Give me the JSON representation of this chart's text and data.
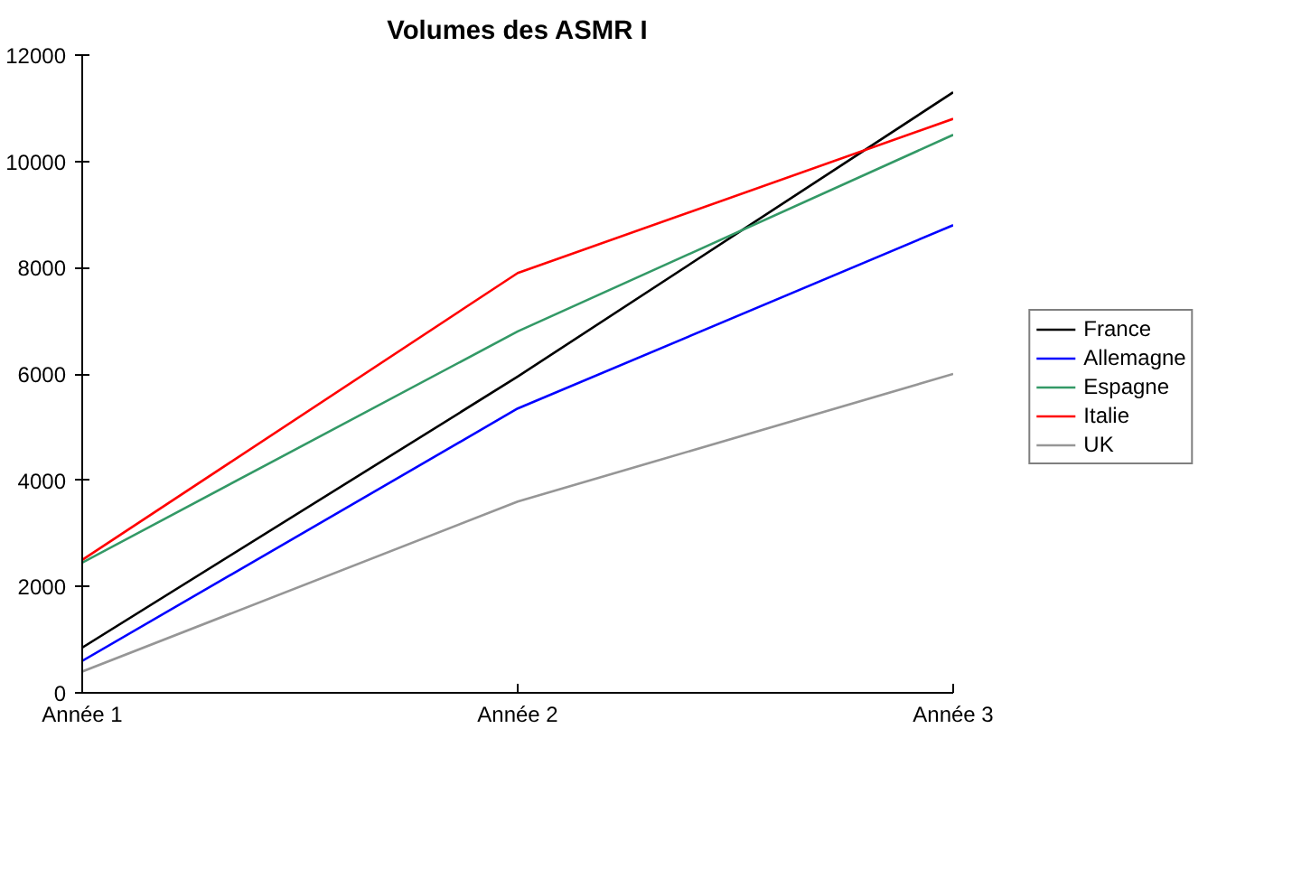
{
  "chart_data": {
    "type": "line",
    "title": "Volumes des ASMR I",
    "categories": [
      "Année 1",
      "Année 2",
      "Année 3"
    ],
    "series": [
      {
        "name": "France",
        "color": "#000000",
        "values": [
          850,
          5950,
          11300
        ]
      },
      {
        "name": "Allemagne",
        "color": "#0000ff",
        "values": [
          600,
          5350,
          8800
        ]
      },
      {
        "name": "Espagne",
        "color": "#339966",
        "values": [
          2450,
          6800,
          10500
        ]
      },
      {
        "name": "Italie",
        "color": "#ff0000",
        "values": [
          2500,
          7900,
          10800
        ]
      },
      {
        "name": "UK",
        "color": "#969696",
        "values": [
          400,
          3600,
          6000
        ]
      }
    ],
    "ylim": [
      0,
      12000
    ],
    "yticks": [
      0,
      2000,
      4000,
      6000,
      8000,
      10000,
      12000
    ],
    "grid": false,
    "legend": "right",
    "marker": "none",
    "line_style": "solid"
  }
}
